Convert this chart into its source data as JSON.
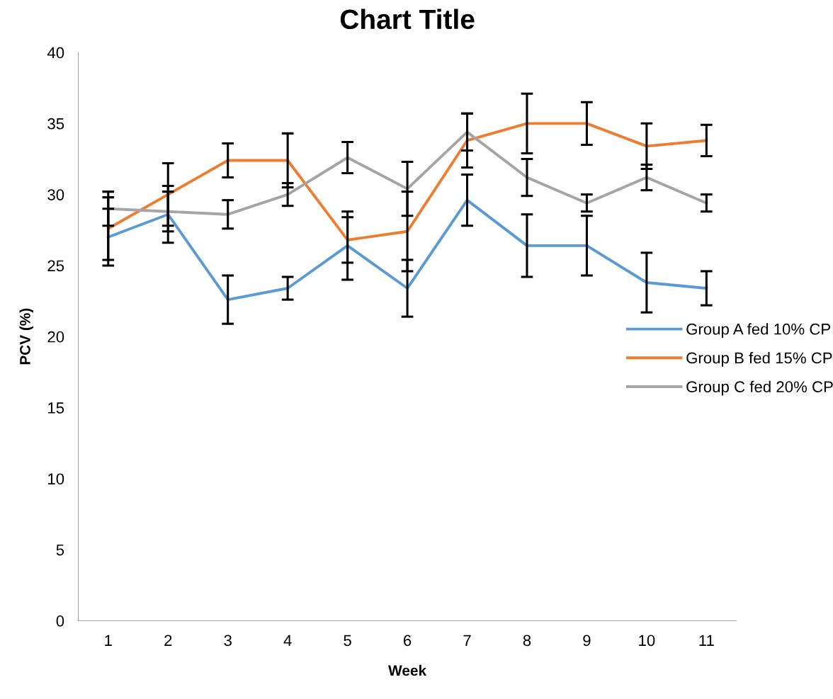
{
  "chart_data": {
    "type": "line",
    "title": "Chart Title",
    "xlabel": "Week",
    "ylabel": "PCV (%)",
    "categories": [
      "1",
      "2",
      "3",
      "4",
      "5",
      "6",
      "7",
      "8",
      "9",
      "10",
      "11"
    ],
    "series": [
      {
        "name": "Group A fed 10% CP",
        "color": "#5b9bd5",
        "values": [
          27.0,
          28.6,
          22.6,
          23.4,
          26.4,
          23.4,
          29.6,
          26.4,
          26.4,
          23.8,
          23.4
        ],
        "errors": [
          2.0,
          2.0,
          1.7,
          0.8,
          2.4,
          2.0,
          1.8,
          2.2,
          2.1,
          2.1,
          1.2
        ]
      },
      {
        "name": "Group B fed 15% CP",
        "color": "#ed7d31",
        "values": [
          27.6,
          30.0,
          32.4,
          32.4,
          26.8,
          27.4,
          33.8,
          35.0,
          35.0,
          33.4,
          33.8
        ],
        "errors": [
          2.2,
          2.2,
          1.2,
          1.9,
          1.6,
          2.8,
          1.9,
          2.1,
          1.5,
          1.6,
          1.1
        ]
      },
      {
        "name": "Group C fed 20% CP",
        "color": "#a5a5a5",
        "values": [
          29.0,
          28.8,
          28.6,
          30.0,
          32.6,
          30.4,
          34.4,
          31.2,
          29.4,
          31.2,
          29.4
        ],
        "errors": [
          1.2,
          1.4,
          1.0,
          0.8,
          1.1,
          1.9,
          1.3,
          1.3,
          0.6,
          0.9,
          0.6
        ]
      }
    ],
    "ylim": [
      0,
      40
    ],
    "yticks": [
      0,
      5,
      10,
      15,
      20,
      25,
      30,
      35,
      40
    ],
    "legend": "right",
    "grid": false,
    "marker": "none",
    "line_style": "solid"
  }
}
